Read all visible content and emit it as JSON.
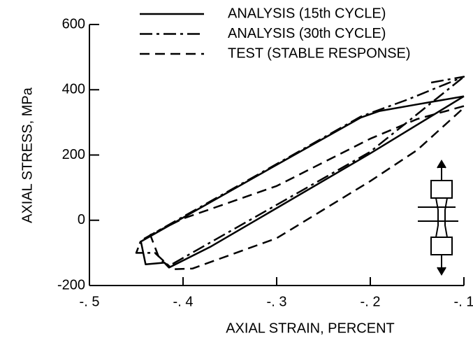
{
  "chart_data": {
    "type": "line",
    "xlabel": "AXIAL STRAIN, PERCENT",
    "ylabel": "AXIAL STRESS, MPa",
    "xlim": [
      -0.5,
      -0.1
    ],
    "xticks": [
      {
        "value": -0.5,
        "label": "-. 5"
      },
      {
        "value": -0.4,
        "label": "-. 4"
      },
      {
        "value": -0.3,
        "label": "-. 3"
      },
      {
        "value": -0.2,
        "label": "-. 2"
      },
      {
        "value": -0.1,
        "label": "-. 1"
      }
    ],
    "ylim": [
      -200,
      600
    ],
    "yticks": [
      -200,
      0,
      200,
      400,
      600
    ],
    "legend": "top",
    "series": [
      {
        "name": "ANALYSIS (15th CYCLE)",
        "color": "#000000",
        "style": "solid",
        "x": [
          -0.1,
          -0.15,
          -0.19,
          -0.21,
          -0.3,
          -0.445,
          -0.44,
          -0.42,
          -0.415,
          -0.37,
          -0.2,
          -0.1
        ],
        "values": [
          380,
          355,
          335,
          315,
          170,
          -65,
          -135,
          -130,
          -145,
          -80,
          205,
          380
        ]
      },
      {
        "name": "ANALYSIS (30th CYCLE)",
        "color": "#000000",
        "style": "dashdot",
        "x": [
          -0.135,
          -0.1,
          -0.16,
          -0.21,
          -0.445,
          -0.45,
          -0.43,
          -0.415,
          -0.2,
          -0.1
        ],
        "values": [
          422,
          440,
          370,
          318,
          -62,
          -100,
          -100,
          -140,
          210,
          440
        ]
      },
      {
        "name": "TEST (STABLE RESPONSE)",
        "color": "#000000",
        "style": "dashed",
        "x": [
          -0.1,
          -0.15,
          -0.2,
          -0.3,
          -0.4,
          -0.435,
          -0.425,
          -0.41,
          -0.39,
          -0.3,
          -0.2,
          -0.15,
          -0.1
        ],
        "values": [
          350,
          310,
          250,
          105,
          5,
          -45,
          -120,
          -150,
          -148,
          -55,
          120,
          215,
          345
        ]
      }
    ]
  }
}
